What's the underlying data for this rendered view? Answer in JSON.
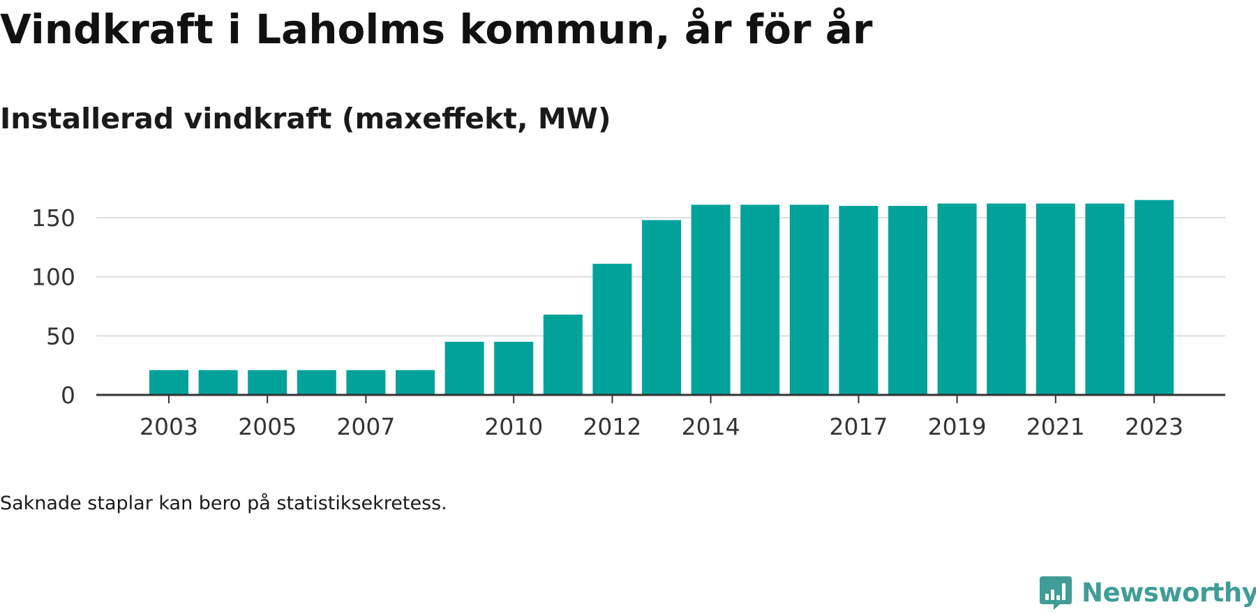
{
  "header": {
    "title": "Vindkraft i Laholms kommun, år för år",
    "subtitle": "Installerad vindkraft (maxeffekt, MW)"
  },
  "footer": {
    "note": "Saknade staplar kan bero på statistiksekretess.",
    "brand": "Newsworthy",
    "brand_icon": "newsworthy-logo-icon",
    "brand_color": "#3f9c97"
  },
  "chart_data": {
    "type": "bar",
    "title": "Vindkraft i Laholms kommun, år för år",
    "subtitle": "Installerad vindkraft (maxeffekt, MW)",
    "xlabel": "",
    "ylabel": "",
    "categories": [
      "2003",
      "2004",
      "2005",
      "2006",
      "2007",
      "2008",
      "2009",
      "2010",
      "2011",
      "2012",
      "2013",
      "2014",
      "2015",
      "2016",
      "2017",
      "2018",
      "2019",
      "2020",
      "2021",
      "2022",
      "2023"
    ],
    "values": [
      21,
      21,
      21,
      21,
      21,
      21,
      45,
      45,
      68,
      111,
      148,
      161,
      161,
      161,
      160,
      160,
      162,
      162,
      162,
      162,
      165
    ],
    "x_tick_labels": [
      "2003",
      "2005",
      "2007",
      "2010",
      "2012",
      "2014",
      "2017",
      "2019",
      "2021",
      "2023"
    ],
    "y_ticks": [
      0,
      50,
      100,
      150
    ],
    "ylim": [
      0,
      165
    ],
    "grid": true,
    "legend": "none",
    "bar_color": "#00a29a",
    "grid_color": "#dddddd",
    "axis_color": "#333333"
  }
}
